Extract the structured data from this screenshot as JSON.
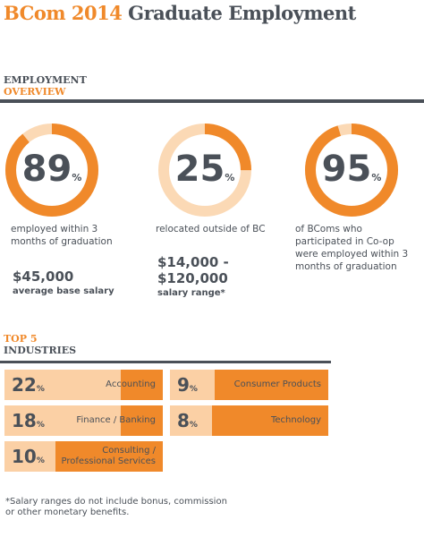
{
  "header": {
    "title_accent": "BCom 2014",
    "title_main": "Graduate Employment"
  },
  "overview": {
    "heading_line1": "EMPLOYMENT",
    "heading_line2": "OVERVIEW",
    "donuts": [
      {
        "value": 89,
        "unit": "%",
        "caption": "employed within 3 months of graduation"
      },
      {
        "value": 25,
        "unit": "%",
        "caption": "relocated outside of BC"
      },
      {
        "value": 95,
        "unit": "%",
        "caption": "of BComs who participated in Co-op were employed within 3 months of graduation"
      }
    ],
    "salary_average": {
      "amount": "$45,000",
      "label": "average base salary"
    },
    "salary_range": {
      "amount": "$14,000 - $120,000",
      "label": "salary range*"
    }
  },
  "industries": {
    "heading_line1": "TOP 5",
    "heading_line2": "INDUSTRIES",
    "items": [
      {
        "value": 22,
        "unit": "%",
        "name": "Accounting"
      },
      {
        "value": 9,
        "unit": "%",
        "name": "Consumer Products"
      },
      {
        "value": 18,
        "unit": "%",
        "name": "Finance / Banking"
      },
      {
        "value": 8,
        "unit": "%",
        "name": "Technology"
      },
      {
        "value": 10,
        "unit": "%",
        "name": "Consulting / Professional Services"
      }
    ]
  },
  "footnote": "*Salary ranges do not include bonus, commission or other monetary benefits."
}
